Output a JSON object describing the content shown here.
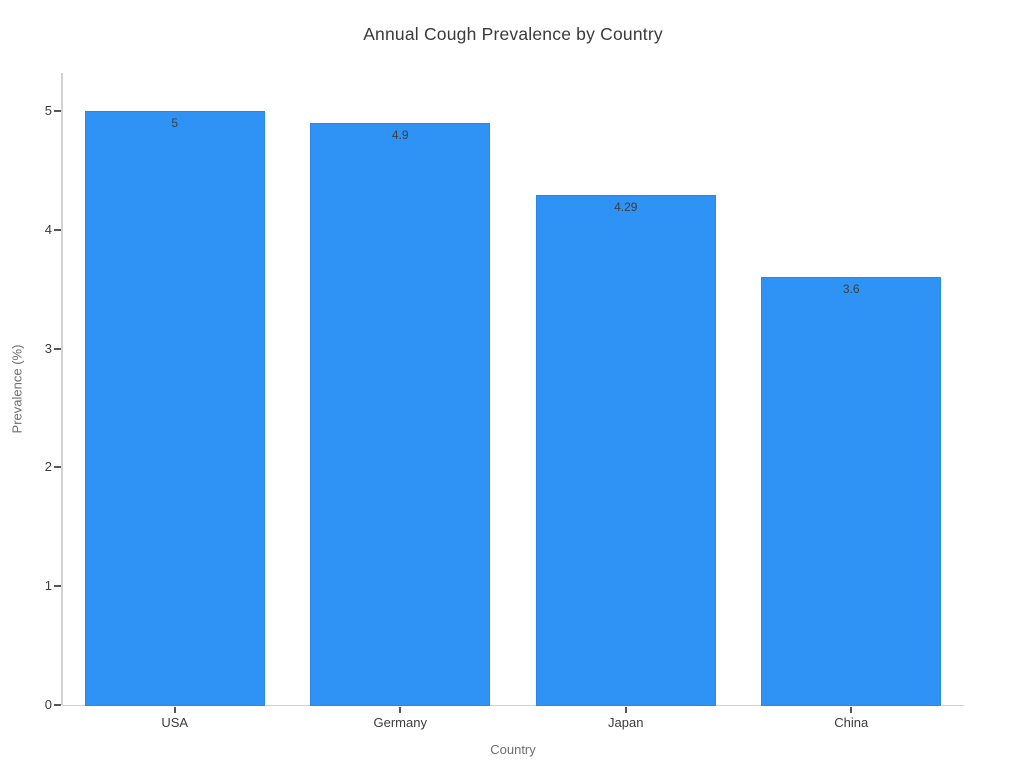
{
  "chart_data": {
    "type": "bar",
    "title": "Annual Cough Prevalence by Country",
    "xlabel": "Country",
    "ylabel": "Prevalence (%)",
    "categories": [
      "USA",
      "Germany",
      "Japan",
      "China"
    ],
    "values": [
      5,
      4.9,
      4.29,
      3.6
    ],
    "value_labels": [
      "5",
      "4.9",
      "4.29",
      "3.6"
    ],
    "yticks": [
      0,
      1,
      2,
      3,
      4,
      5
    ],
    "ylim": [
      0,
      5.32
    ],
    "grid": false,
    "legend": "none",
    "background_color": "#ffffff",
    "bar_color": "#2e93f5",
    "bar_edge_color": "#2787ec",
    "spine_color": "#d2d2d2",
    "tick_mark_color": "#555555",
    "tick_label_color": "#3b3b3b",
    "value_label_color": "#3f3f3f",
    "title_color": "#3a3a3a",
    "axis_title_color": "#6e6e6e"
  }
}
